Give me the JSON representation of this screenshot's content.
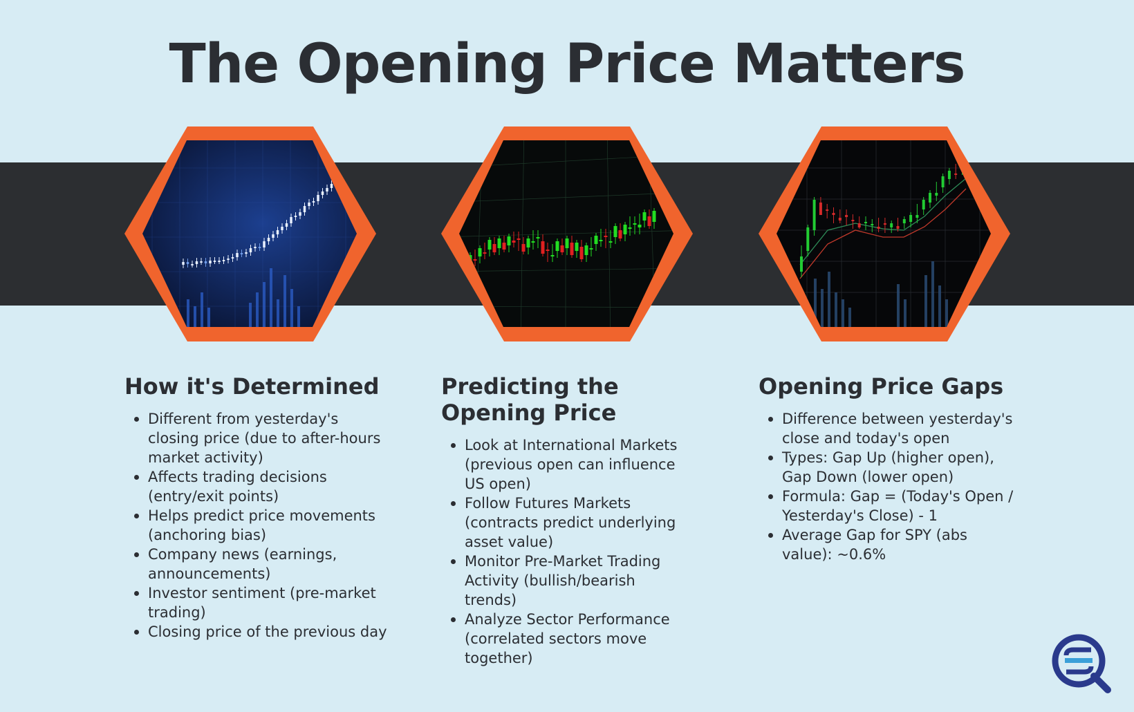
{
  "title": "The Opening Price Matters",
  "colors": {
    "background": "#d7ecf4",
    "band": "#2c2e31",
    "hex_border": "#f0642d",
    "text": "#2b2e33",
    "logo": "#2a3a8c"
  },
  "images": [
    {
      "name": "blue candlestick chart rising"
    },
    {
      "name": "green and red candlestick chart"
    },
    {
      "name": "candlestick chart with moving averages"
    }
  ],
  "columns": [
    {
      "heading": "How it's Determined",
      "items": [
        "Different from yesterday's closing price (due to after-hours market activity)",
        "Affects trading decisions (entry/exit points)",
        "Helps predict price movements (anchoring bias)",
        "Company news (earnings, announcements)",
        "Investor sentiment (pre-market trading)",
        "Closing price of the previous day"
      ]
    },
    {
      "heading": "Predicting the Opening Price",
      "items": [
        "Look at International Markets (previous open can influence US open)",
        "Follow Futures Markets (contracts predict underlying asset value)",
        "Monitor Pre-Market Trading Activity (bullish/bearish trends)",
        "Analyze Sector Performance (correlated sectors move together)"
      ]
    },
    {
      "heading": "Opening Price Gaps",
      "items": [
        "Difference between yesterday's close and today's open",
        "Types: Gap Up (higher open), Gap Down (lower open)",
        "Formula: Gap = (Today's Open / Yesterday's Close) - 1",
        "Average Gap for SPY (abs value): ~0.6%"
      ]
    }
  ],
  "logo_icon": "sq-magnifier-logo"
}
